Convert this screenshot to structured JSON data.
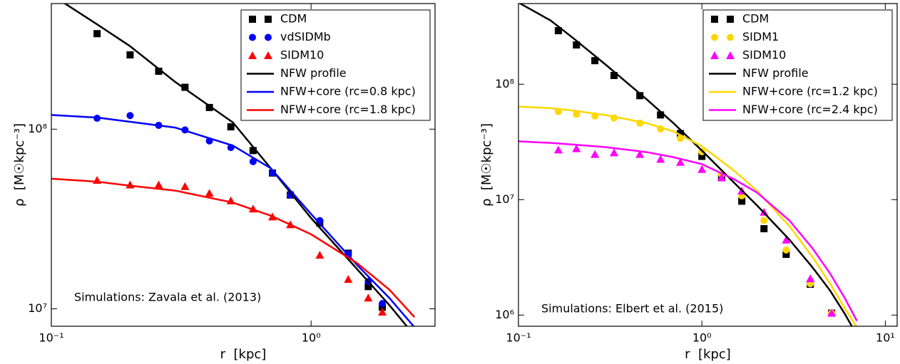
{
  "chart_data": [
    {
      "type": "line",
      "xscale": "log",
      "yscale": "log",
      "xlabel": "r  [kpc]",
      "ylabel": "ρ  [M☉kpc⁻³]",
      "annotation": "Simulations: Zavala et al. (2013)",
      "legend": "upper right",
      "xlim": [
        0.1,
        3.0
      ],
      "ylim": [
        8000000,
        500000000
      ],
      "xticks": [
        {
          "value": 0.1,
          "label": "10⁻¹"
        },
        {
          "value": 1,
          "label": "10⁰"
        }
      ],
      "yticks": [
        {
          "value": 10000000,
          "label": "10⁷"
        },
        {
          "value": 100000000,
          "label": "10⁸"
        }
      ],
      "series": [
        {
          "name": "CDM",
          "color": "#000000",
          "marker": "square",
          "x": [
            0.15,
            0.201,
            0.259,
            0.327,
            0.406,
            0.491,
            0.598,
            0.71,
            0.832,
            1.08,
            1.39,
            1.66,
            1.88
          ],
          "values": [
            340000000,
            259000000,
            210000000,
            171000000,
            132000000,
            103000000,
            76000000,
            57000000,
            43000000,
            30000000,
            20400000,
            13300000,
            10200000
          ]
        },
        {
          "name": "vdSIDMb",
          "color": "#0000ff",
          "marker": "circle",
          "x": [
            0.15,
            0.201,
            0.259,
            0.327,
            0.406,
            0.491,
            0.598,
            0.71,
            0.832,
            1.08,
            1.39,
            1.66,
            1.88
          ],
          "values": [
            115000000,
            119000000,
            105000000,
            99000000,
            86000000,
            79000000,
            66000000,
            57000000,
            43000000,
            31000000,
            20200000,
            14200000,
            10700000
          ]
        },
        {
          "name": "SIDM10",
          "color": "#ff0000",
          "marker": "triangle",
          "x": [
            0.15,
            0.201,
            0.259,
            0.327,
            0.406,
            0.491,
            0.598,
            0.71,
            0.832,
            1.08,
            1.39,
            1.66,
            1.88
          ],
          "values": [
            52000000,
            49000000,
            49000000,
            48000000,
            44000000,
            40000000,
            36000000,
            32500000,
            29400000,
            19900000,
            14600000,
            11500000,
            9600000
          ]
        },
        {
          "name": "NFW profile",
          "color": "#000000",
          "x": [
            0.1,
            0.15,
            0.2,
            0.3,
            0.5,
            0.7,
            1,
            1.5,
            2,
            2.5
          ],
          "values": [
            560000000,
            383000000,
            291000000,
            183000000,
            109000000,
            60500000,
            32000000,
            16700000,
            10500000,
            7100000
          ]
        },
        {
          "name": "NFW+core (rc=0.8 kpc)",
          "color": "#0000ff",
          "x": [
            0.1,
            0.15,
            0.2,
            0.3,
            0.5,
            0.7,
            1,
            1.5,
            2,
            2.5
          ],
          "values": [
            120000000,
            116000000,
            110000000,
            102000000,
            81000000,
            60500000,
            33700000,
            17600000,
            11500000,
            7900000
          ]
        },
        {
          "name": "NFW+core (rc=1.8 kpc)",
          "color": "#ff0000",
          "x": [
            0.1,
            0.15,
            0.2,
            0.3,
            0.5,
            0.7,
            1,
            1.5,
            2,
            2.5
          ],
          "values": [
            53000000,
            51000000,
            48500000,
            45500000,
            39000000,
            33000000,
            26000000,
            18000000,
            12800000,
            9000000
          ]
        }
      ]
    },
    {
      "type": "line",
      "xscale": "log",
      "yscale": "log",
      "xlabel": "r  [kpc]",
      "ylabel": "ρ  [M☉kpc⁻³]",
      "annotation": "Simulations: Elbert et al. (2015)",
      "legend": "upper right",
      "xlim": [
        0.1,
        11.6
      ],
      "ylim": [
        800000,
        500000000
      ],
      "xticks": [
        {
          "value": 0.1,
          "label": "10⁻¹"
        },
        {
          "value": 1,
          "label": "10⁰"
        },
        {
          "value": 10,
          "label": "10¹"
        }
      ],
      "yticks": [
        {
          "value": 1000000,
          "label": "10⁶"
        },
        {
          "value": 10000000,
          "label": "10⁷"
        },
        {
          "value": 100000000,
          "label": "10⁸"
        }
      ],
      "series": [
        {
          "name": "CDM",
          "color": "#000000",
          "marker": "square",
          "x": [
            0.165,
            0.207,
            0.261,
            0.332,
            0.459,
            0.595,
            0.763,
            1.0,
            1.28,
            1.65,
            2.18,
            2.88,
            3.9,
            5.1
          ],
          "values": [
            291000000,
            219000000,
            160000000,
            119000000,
            79600000,
            54200000,
            37400000,
            23700000,
            15500000,
            9700000,
            5600000,
            3360000,
            1850000,
            1040000
          ]
        },
        {
          "name": "SIDM1",
          "color": "#ffd700",
          "marker": "circle",
          "x": [
            0.165,
            0.207,
            0.261,
            0.332,
            0.459,
            0.595,
            0.763,
            1.0,
            1.28,
            1.65,
            2.18,
            2.88,
            3.9,
            5.1
          ],
          "values": [
            58000000,
            55000000,
            53000000,
            51000000,
            46000000,
            41000000,
            34000000,
            26000000,
            16600000,
            10800000,
            6600000,
            3660000,
            1870000,
            1040000
          ]
        },
        {
          "name": "SIDM10",
          "color": "#ff00ff",
          "marker": "triangle",
          "x": [
            0.165,
            0.207,
            0.261,
            0.332,
            0.459,
            0.595,
            0.763,
            1.0,
            1.28,
            1.65,
            2.18,
            2.88,
            3.9,
            5.1
          ],
          "values": [
            27000000,
            27700000,
            24700000,
            25500000,
            24700000,
            22400000,
            21100000,
            18300000,
            15500000,
            11900000,
            7800000,
            4470000,
            2070000,
            1040000
          ]
        },
        {
          "name": "NFW profile",
          "color": "#000000",
          "x": [
            0.1,
            0.15,
            0.2,
            0.3,
            0.5,
            0.7,
            1,
            1.5,
            2,
            3,
            4,
            5,
            6,
            7
          ],
          "values": [
            510000000,
            356000000,
            249000000,
            147000000,
            74000000,
            46000000,
            26600000,
            14000000,
            8900000,
            4500000,
            2600000,
            1630000,
            1030000,
            670000
          ]
        },
        {
          "name": "NFW+core (rc=1.2 kpc)",
          "color": "#ffd700",
          "x": [
            0.1,
            0.15,
            0.2,
            0.3,
            0.5,
            0.7,
            1,
            1.5,
            2,
            3,
            4,
            5,
            6,
            7
          ],
          "values": [
            64000000,
            62000000,
            59000000,
            54000000,
            46000000,
            39000000,
            29000000,
            17800000,
            11900000,
            5900000,
            3200000,
            1870000,
            1150000,
            780000
          ]
        },
        {
          "name": "NFW+core (rc=2.4 kpc)",
          "color": "#ff00ff",
          "x": [
            0.1,
            0.15,
            0.2,
            0.3,
            0.5,
            0.7,
            1,
            1.5,
            2,
            3,
            4,
            5,
            6,
            7
          ],
          "values": [
            32000000,
            31000000,
            30000000,
            28500000,
            25800000,
            23300000,
            20300000,
            15000000,
            11500000,
            6600000,
            3800000,
            2290000,
            1410000,
            890000
          ]
        }
      ]
    }
  ]
}
